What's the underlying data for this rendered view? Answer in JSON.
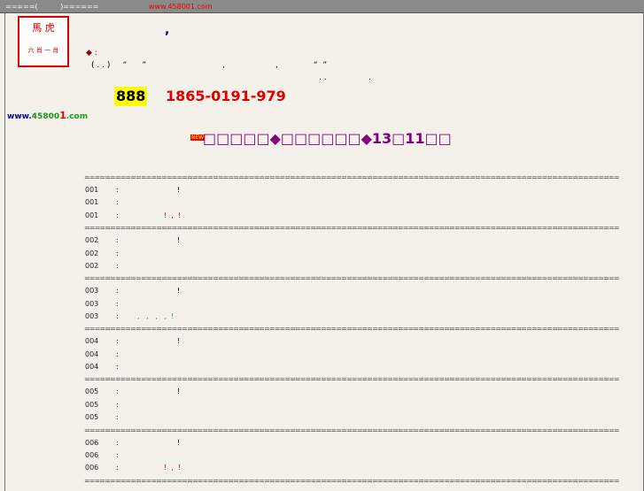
{
  "topbar": {
    "left": "=====(          )======",
    "url": "www.458001.com"
  },
  "header": {
    "comma": ",",
    "line1": "◆ :",
    "line2": "( . . )     “      ”                              ,                    ,              “  ”",
    "line3": ". .",
    "line4": ".",
    "hotline": "888",
    "phone": "1865-0191-979",
    "site_prefix": "www.",
    "site_mid": "45800",
    "site_end": "1",
    "site_suffix": ".com"
  },
  "headline": {
    "badge": "NEW",
    "text": "□□□□□◆□□□□□□◆13□11□□"
  },
  "list": {
    "separator": "========================================================================================================",
    "sep": ":",
    "groups": [
      {
        "rows": [
          {
            "id": "001",
            "note": "!",
            "color": "#000"
          },
          {
            "id": "001",
            "note": "",
            "color": "#000"
          },
          {
            "id": "001",
            "note": "!  ,  !",
            "color": "#e00000"
          }
        ]
      },
      {
        "rows": [
          {
            "id": "002",
            "note": "!",
            "color": "#000"
          },
          {
            "id": "002",
            "note": "",
            "color": "#000"
          },
          {
            "id": "002",
            "note": "",
            "color": "#000"
          }
        ]
      },
      {
        "rows": [
          {
            "id": "003",
            "note": "!",
            "color": "#000"
          },
          {
            "id": "003",
            "note": "",
            "color": "#000"
          },
          {
            "id": "003",
            "note": ",   ,   ,   ,  !",
            "color": "#1a9a1a"
          }
        ]
      },
      {
        "rows": [
          {
            "id": "004",
            "note": "!",
            "color": "#000"
          },
          {
            "id": "004",
            "note": "",
            "color": "#000"
          },
          {
            "id": "004",
            "note": "",
            "color": "#000"
          }
        ]
      },
      {
        "rows": [
          {
            "id": "005",
            "note": "!",
            "color": "#000"
          },
          {
            "id": "005",
            "note": "",
            "color": "#000"
          },
          {
            "id": "005",
            "note": "",
            "color": "#000"
          }
        ]
      },
      {
        "rows": [
          {
            "id": "006",
            "note": "!",
            "color": "#000"
          },
          {
            "id": "006",
            "note": "",
            "color": "#000"
          },
          {
            "id": "006",
            "note": "!  ,  !",
            "color": "#e00000"
          }
        ]
      }
    ]
  }
}
